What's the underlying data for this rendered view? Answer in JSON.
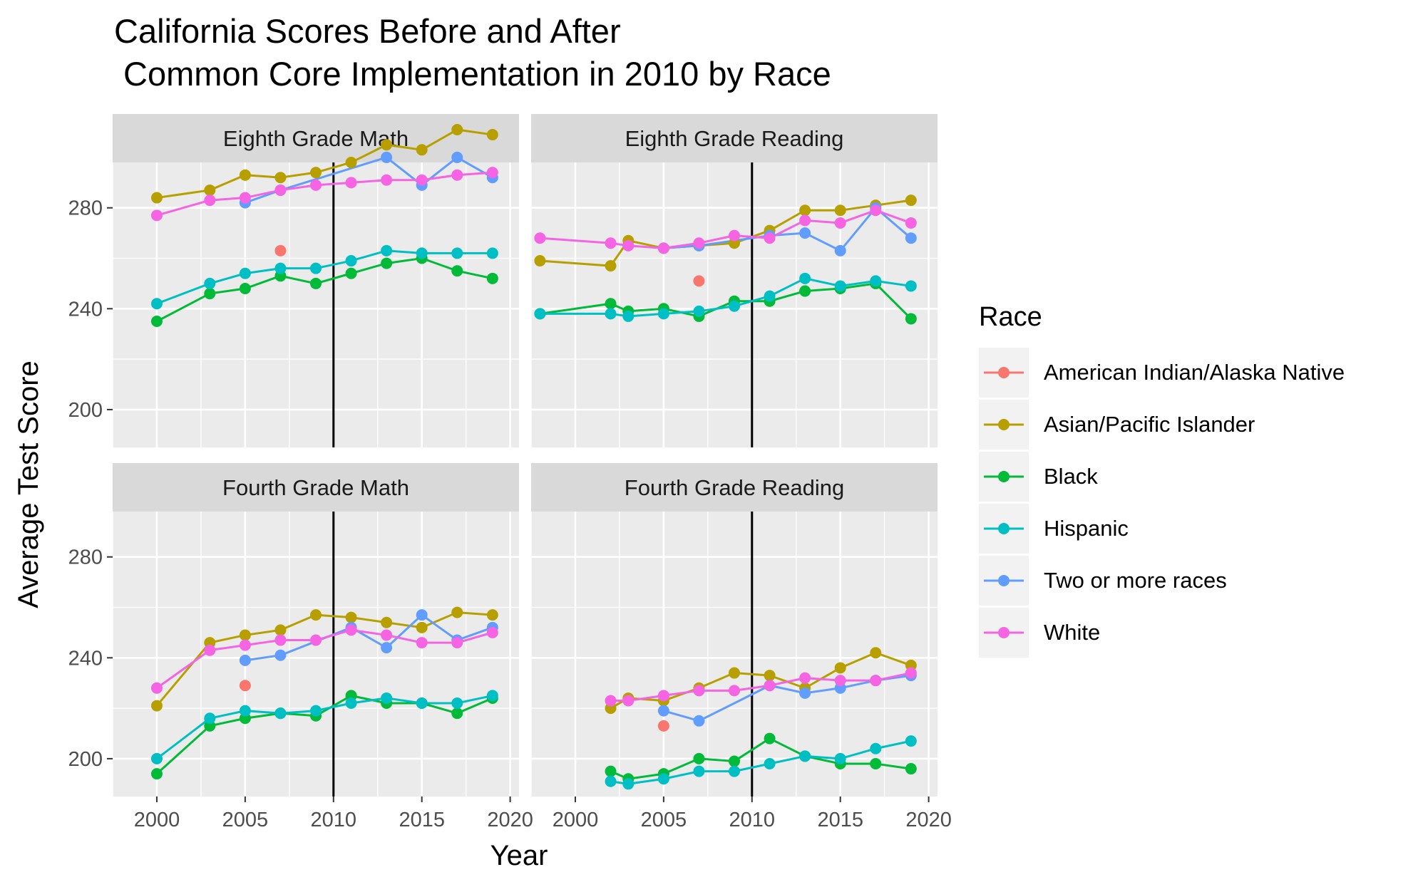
{
  "chart_data": {
    "type": "line",
    "title": "California Scores Before and After\n Common Core Implementation in 2010 by Race",
    "xlabel": "Year",
    "ylabel": "Average Test Score",
    "xlim": [
      1997.5,
      2020.5
    ],
    "ylim": [
      185,
      298
    ],
    "xticks": [
      2000,
      2005,
      2010,
      2015,
      2020
    ],
    "yticks": [
      200,
      240,
      280
    ],
    "vline": 2010,
    "grid": true,
    "legend": {
      "title": "Race",
      "position": "right",
      "entries": [
        "American Indian/Alaska Native",
        "Asian/Pacific Islander",
        "Black",
        "Hispanic",
        "Two or more races",
        "White"
      ]
    },
    "colors": {
      "American Indian/Alaska Native": "#F8766D",
      "Asian/Pacific Islander": "#B79F00",
      "Black": "#00BA38",
      "Hispanic": "#00BFC4",
      "Two or more races": "#619CFF",
      "White": "#F564E3"
    },
    "panels": [
      {
        "title": "Eighth Grade Math",
        "series": [
          {
            "name": "American Indian/Alaska Native",
            "x": [
              2007
            ],
            "y": [
              263
            ]
          },
          {
            "name": "Asian/Pacific Islander",
            "x": [
              2000,
              2003,
              2005,
              2007,
              2009,
              2011,
              2013,
              2015,
              2017,
              2019
            ],
            "y": [
              284,
              287,
              293,
              292,
              294,
              298,
              305,
              303,
              311,
              309
            ]
          },
          {
            "name": "Black",
            "x": [
              2000,
              2003,
              2005,
              2007,
              2009,
              2011,
              2013,
              2015,
              2017,
              2019
            ],
            "y": [
              235,
              246,
              248,
              253,
              250,
              254,
              258,
              260,
              255,
              252
            ]
          },
          {
            "name": "Hispanic",
            "x": [
              2000,
              2003,
              2005,
              2007,
              2009,
              2011,
              2013,
              2015,
              2017,
              2019
            ],
            "y": [
              242,
              250,
              254,
              256,
              256,
              259,
              263,
              262,
              262,
              262
            ]
          },
          {
            "name": "Two or more races",
            "x": [
              2005,
              2007,
              2013,
              2015,
              2017,
              2019
            ],
            "y": [
              282,
              287,
              300,
              289,
              300,
              292
            ]
          },
          {
            "name": "White",
            "x": [
              2000,
              2003,
              2005,
              2007,
              2009,
              2011,
              2013,
              2015,
              2017,
              2019
            ],
            "y": [
              277,
              283,
              284,
              287,
              289,
              290,
              291,
              291,
              293,
              294
            ]
          }
        ]
      },
      {
        "title": "Eighth Grade Reading",
        "series": [
          {
            "name": "American Indian/Alaska Native",
            "x": [
              2007
            ],
            "y": [
              251
            ]
          },
          {
            "name": "Asian/Pacific Islander",
            "x": [
              1998,
              2002,
              2003,
              2005,
              2007,
              2009,
              2011,
              2013,
              2015,
              2017,
              2019
            ],
            "y": [
              259,
              257,
              267,
              264,
              265,
              266,
              271,
              279,
              279,
              281,
              283
            ]
          },
          {
            "name": "Black",
            "x": [
              1998,
              2002,
              2003,
              2005,
              2007,
              2009,
              2011,
              2013,
              2015,
              2017,
              2019
            ],
            "y": [
              238,
              242,
              239,
              240,
              237,
              243,
              243,
              247,
              248,
              250,
              236
            ]
          },
          {
            "name": "Hispanic",
            "x": [
              1998,
              2002,
              2003,
              2005,
              2007,
              2009,
              2011,
              2013,
              2015,
              2017,
              2019
            ],
            "y": [
              238,
              238,
              237,
              238,
              239,
              241,
              245,
              252,
              249,
              251,
              249
            ]
          },
          {
            "name": "Two or more races",
            "x": [
              2005,
              2007,
              2011,
              2013,
              2015,
              2017,
              2019
            ],
            "y": [
              264,
              265,
              269,
              270,
              263,
              280,
              268
            ]
          },
          {
            "name": "White",
            "x": [
              1998,
              2002,
              2003,
              2005,
              2007,
              2009,
              2011,
              2013,
              2015,
              2017,
              2019
            ],
            "y": [
              268,
              266,
              265,
              264,
              266,
              269,
              268,
              275,
              274,
              279,
              274
            ]
          }
        ]
      },
      {
        "title": "Fourth Grade Math",
        "series": [
          {
            "name": "American Indian/Alaska Native",
            "x": [
              2005
            ],
            "y": [
              229
            ]
          },
          {
            "name": "Asian/Pacific Islander",
            "x": [
              2000,
              2003,
              2005,
              2007,
              2009,
              2011,
              2013,
              2015,
              2017,
              2019
            ],
            "y": [
              221,
              246,
              249,
              251,
              257,
              256,
              254,
              252,
              258,
              257
            ]
          },
          {
            "name": "Black",
            "x": [
              2000,
              2003,
              2005,
              2007,
              2009,
              2011,
              2013,
              2015,
              2017,
              2019
            ],
            "y": [
              194,
              213,
              216,
              218,
              217,
              225,
              222,
              222,
              218,
              224
            ]
          },
          {
            "name": "Hispanic",
            "x": [
              2000,
              2003,
              2005,
              2007,
              2009,
              2011,
              2013,
              2015,
              2017,
              2019
            ],
            "y": [
              200,
              216,
              219,
              218,
              219,
              222,
              224,
              222,
              222,
              225
            ]
          },
          {
            "name": "Two or more races",
            "x": [
              2005,
              2007,
              2011,
              2013,
              2015,
              2017,
              2019
            ],
            "y": [
              239,
              241,
              252,
              244,
              257,
              247,
              252
            ]
          },
          {
            "name": "White",
            "x": [
              2000,
              2003,
              2005,
              2007,
              2009,
              2011,
              2013,
              2015,
              2017,
              2019
            ],
            "y": [
              228,
              243,
              245,
              247,
              247,
              251,
              249,
              246,
              246,
              250
            ]
          }
        ]
      },
      {
        "title": "Fourth Grade Reading",
        "series": [
          {
            "name": "American Indian/Alaska Native",
            "x": [
              2005
            ],
            "y": [
              213
            ]
          },
          {
            "name": "Asian/Pacific Islander",
            "x": [
              2002,
              2003,
              2005,
              2007,
              2009,
              2011,
              2013,
              2015,
              2017,
              2019
            ],
            "y": [
              220,
              224,
              223,
              228,
              234,
              233,
              228,
              236,
              242,
              237
            ]
          },
          {
            "name": "Black",
            "x": [
              2002,
              2003,
              2005,
              2007,
              2009,
              2011,
              2013,
              2015,
              2017,
              2019
            ],
            "y": [
              195,
              192,
              194,
              200,
              199,
              208,
              201,
              198,
              198,
              196
            ]
          },
          {
            "name": "Hispanic",
            "x": [
              2002,
              2003,
              2005,
              2007,
              2009,
              2011,
              2013,
              2015,
              2017,
              2019
            ],
            "y": [
              191,
              190,
              192,
              195,
              195,
              198,
              201,
              200,
              204,
              207
            ]
          },
          {
            "name": "Two or more races",
            "x": [
              2005,
              2007,
              2011,
              2013,
              2015,
              2017,
              2019
            ],
            "y": [
              219,
              215,
              229,
              226,
              228,
              231,
              233
            ]
          },
          {
            "name": "White",
            "x": [
              2002,
              2003,
              2005,
              2007,
              2009,
              2011,
              2013,
              2015,
              2017,
              2019
            ],
            "y": [
              223,
              223,
              225,
              227,
              227,
              229,
              232,
              231,
              231,
              234
            ]
          }
        ]
      }
    ]
  }
}
